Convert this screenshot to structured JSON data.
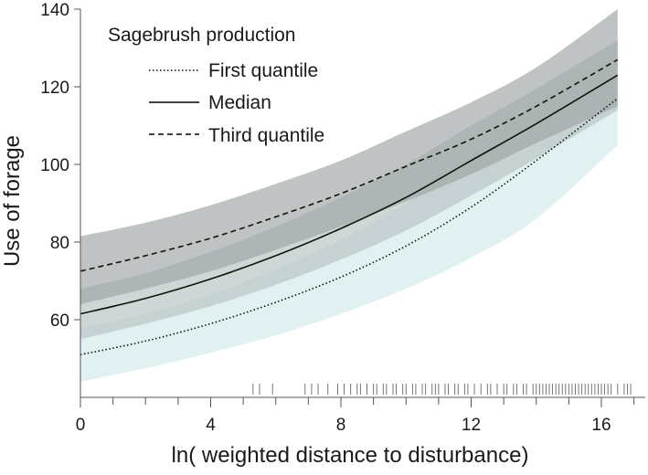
{
  "chart_data": {
    "type": "line",
    "title": "",
    "xlabel": "ln( weighted distance to disturbance)",
    "ylabel": "Use of forage",
    "xlim": [
      0,
      17
    ],
    "ylim": [
      40,
      140
    ],
    "x_ticks": [
      0,
      4,
      8,
      12,
      16
    ],
    "x_minor_step": 1,
    "y_ticks": [
      60,
      80,
      100,
      120,
      140
    ],
    "grid": false,
    "legend": {
      "title": "Sagebrush production",
      "placement": "top-left",
      "entries": [
        "First quantile",
        "Median",
        "Third quantile"
      ]
    },
    "series": [
      {
        "name": "First quantile",
        "line_style": "dotted",
        "band_color": "#dceef0",
        "x": [
          0,
          2,
          4,
          6,
          8,
          10,
          12,
          14,
          16.5
        ],
        "y": [
          51,
          54.5,
          59,
          64.5,
          71,
          79,
          89,
          101,
          117
        ],
        "lower": [
          44,
          47.5,
          51.5,
          56,
          61.5,
          68,
          76,
          86,
          105
        ],
        "upper": [
          58,
          61.5,
          66.5,
          73,
          80.5,
          90,
          102,
          116,
          129
        ]
      },
      {
        "name": "Median",
        "line_style": "solid",
        "band_color": "#b5c0c0",
        "x": [
          0,
          2,
          4,
          6,
          8,
          10,
          12,
          14,
          16.5
        ],
        "y": [
          61.5,
          65.5,
          70.5,
          76.5,
          83.5,
          91.5,
          101,
          110.5,
          123
        ],
        "lower": [
          55,
          59,
          63.5,
          69,
          75.5,
          83,
          92,
          101.5,
          114
        ],
        "upper": [
          68,
          72,
          77.5,
          84,
          91.5,
          100,
          110,
          119.5,
          132
        ]
      },
      {
        "name": "Third quantile",
        "line_style": "dashed",
        "band_color": "#9da3a3",
        "x": [
          0,
          2,
          4,
          6,
          8,
          10,
          12,
          14,
          16.5
        ],
        "y": [
          72.5,
          76.5,
          81,
          86.5,
          92.5,
          99.5,
          106.5,
          115,
          127
        ],
        "lower": [
          64,
          68,
          72.5,
          78,
          84,
          90.5,
          97.5,
          105.5,
          115
        ],
        "upper": [
          81.5,
          85,
          89.5,
          95,
          101,
          108.5,
          116,
          125,
          140
        ]
      }
    ],
    "rug": [
      5.3,
      5.5,
      5.9,
      6.9,
      7.1,
      7.3,
      7.6,
      7.9,
      8.1,
      8.3,
      8.5,
      8.6,
      8.8,
      9.0,
      9.1,
      9.3,
      9.4,
      9.6,
      9.7,
      9.9,
      10.0,
      10.2,
      10.3,
      10.5,
      10.6,
      10.8,
      10.9,
      11.0,
      11.2,
      11.3,
      11.5,
      11.6,
      11.8,
      11.9,
      12.1,
      12.3,
      12.5,
      12.6,
      12.8,
      13.0,
      13.1,
      13.3,
      13.4,
      13.6,
      13.7,
      13.9,
      14.0,
      14.1,
      14.2,
      14.3,
      14.4,
      14.5,
      14.6,
      14.7,
      14.8,
      14.9,
      15.0,
      15.1,
      15.2,
      15.3,
      15.4,
      15.5,
      15.6,
      15.7,
      15.8,
      15.9,
      16.0,
      16.1,
      16.2,
      16.3,
      16.5,
      16.7,
      16.8,
      16.9
    ]
  }
}
